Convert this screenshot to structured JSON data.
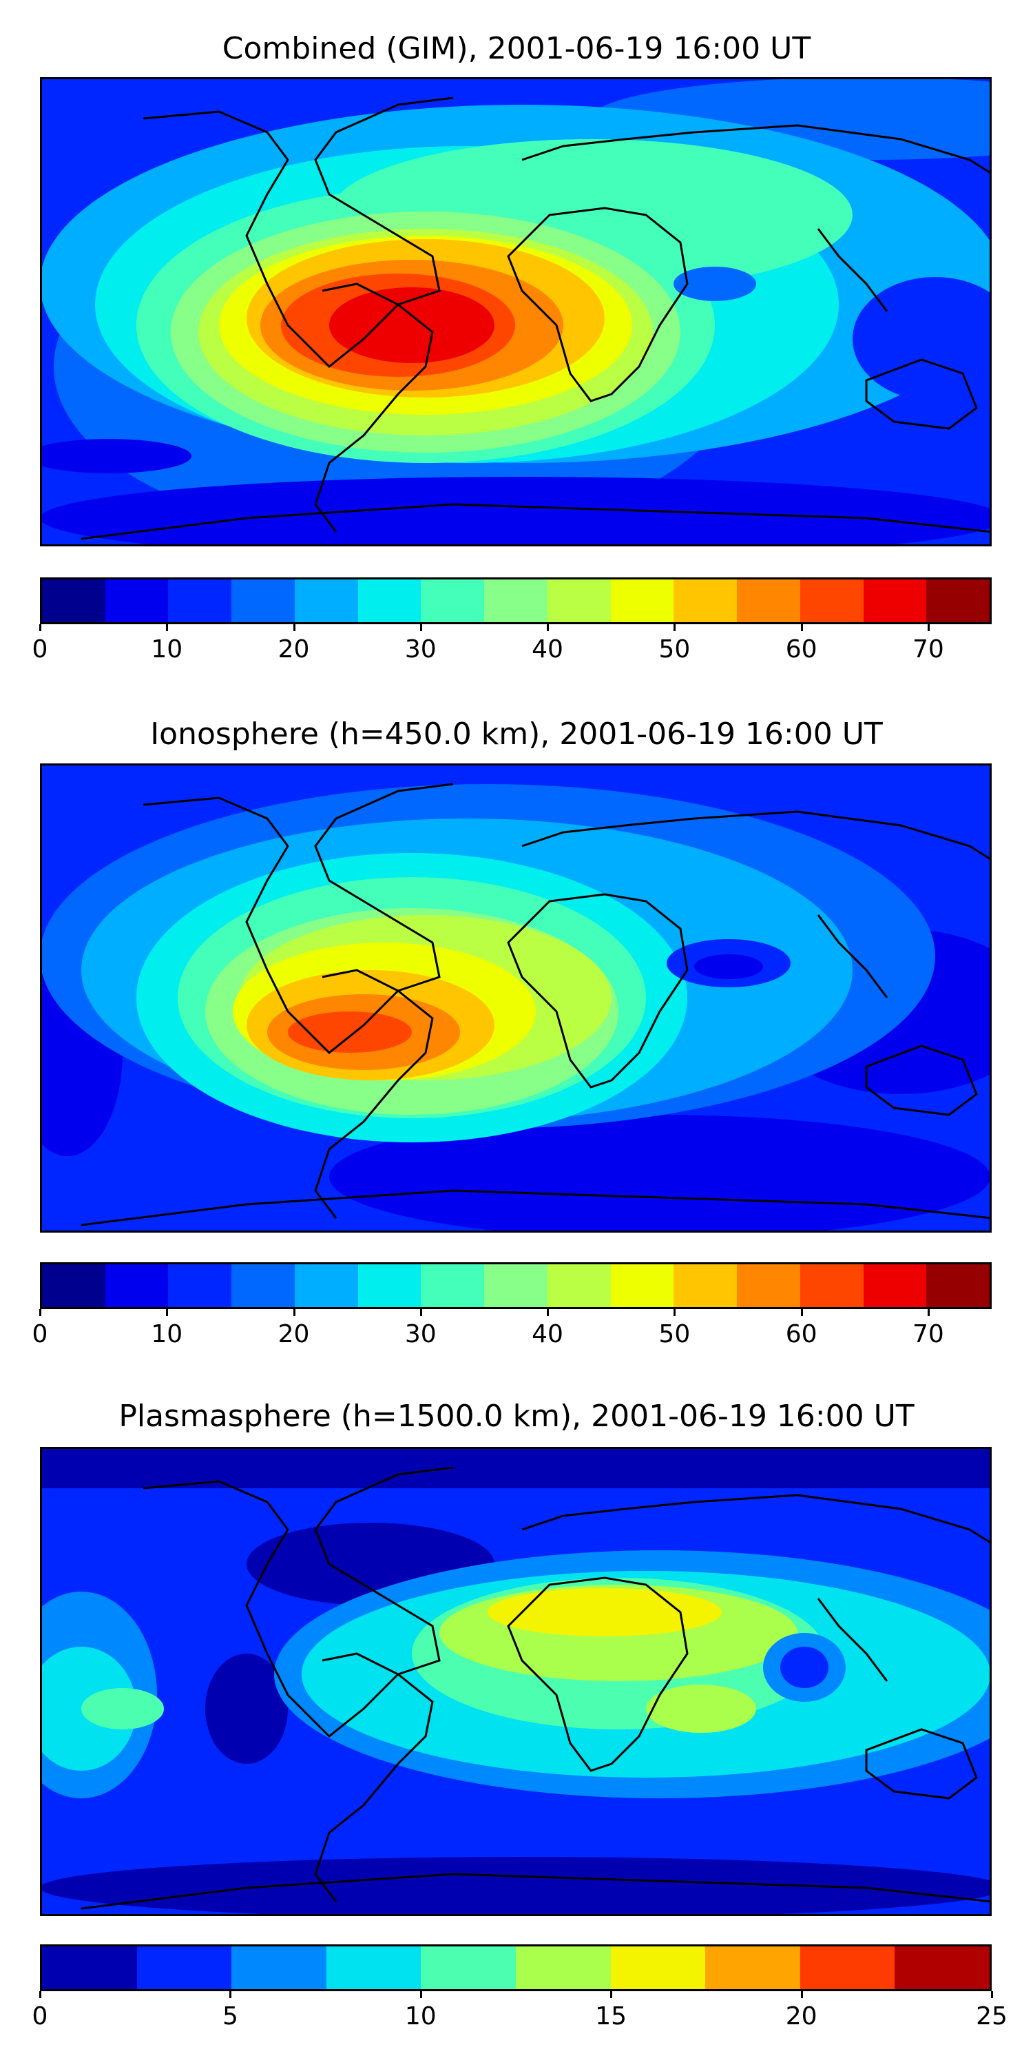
{
  "panels": [
    {
      "title": "Combined (GIM), 2001-06-19 16:00 UT",
      "colorbar": {
        "min": 0,
        "max": 75,
        "colors": [
          "#00008f",
          "#0000ee",
          "#0026ff",
          "#0068ff",
          "#00aeff",
          "#00eeee",
          "#44ffba",
          "#88ff88",
          "#baff44",
          "#eeff00",
          "#ffc600",
          "#ff8600",
          "#ff4600",
          "#ee0000",
          "#960000"
        ],
        "tick_values": [
          0,
          10,
          20,
          30,
          40,
          50,
          60,
          70
        ],
        "tick_labels": [
          "0",
          "10",
          "20",
          "30",
          "40",
          "50",
          "60",
          "70"
        ]
      }
    },
    {
      "title": "Ionosphere  (h=450.0 km), 2001-06-19 16:00 UT",
      "colorbar": {
        "min": 0,
        "max": 75,
        "colors": [
          "#00008f",
          "#0000ee",
          "#0026ff",
          "#0068ff",
          "#00aeff",
          "#00eeee",
          "#44ffba",
          "#88ff88",
          "#baff44",
          "#eeff00",
          "#ffc600",
          "#ff8600",
          "#ff4600",
          "#ee0000",
          "#960000"
        ],
        "tick_values": [
          0,
          10,
          20,
          30,
          40,
          50,
          60,
          70
        ],
        "tick_labels": [
          "0",
          "10",
          "20",
          "30",
          "40",
          "50",
          "60",
          "70"
        ]
      }
    },
    {
      "title": "Plasmasphere (h=1500.0 km), 2001-06-19 16:00 UT",
      "colorbar": {
        "min": 0,
        "max": 25,
        "colors": [
          "#0000b0",
          "#0026ff",
          "#0088ff",
          "#00e2f0",
          "#4cffb0",
          "#aaff4c",
          "#f4f400",
          "#ffa400",
          "#ff3c00",
          "#b00000"
        ],
        "tick_values": [
          0,
          5,
          10,
          15,
          20,
          25
        ],
        "tick_labels": [
          "0",
          "5",
          "10",
          "15",
          "20",
          "25"
        ]
      }
    }
  ]
}
